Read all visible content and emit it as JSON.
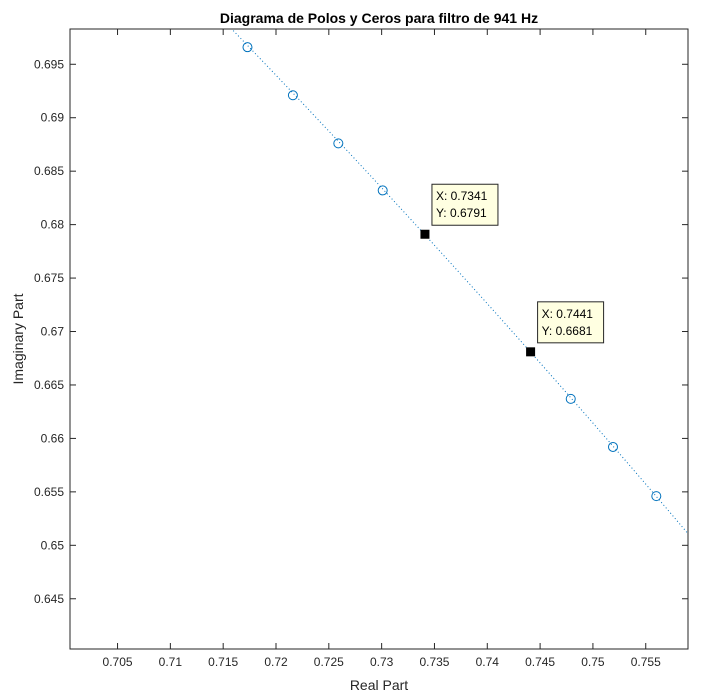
{
  "chart_data": {
    "type": "scatter",
    "title": "Diagrama de Polos y Ceros para filtro de 941 Hz",
    "xlabel": "Real Part",
    "ylabel": "Imaginary Part",
    "xlim": [
      0.7005,
      0.759
    ],
    "ylim": [
      0.6403,
      0.6983
    ],
    "xticks": [
      0.705,
      0.71,
      0.715,
      0.72,
      0.725,
      0.73,
      0.735,
      0.74,
      0.745,
      0.75,
      0.755
    ],
    "xtick_labels": [
      "0.705",
      "0.71",
      "0.715",
      "0.72",
      "0.725",
      "0.73",
      "0.735",
      "0.74",
      "0.745",
      "0.75",
      "0.755"
    ],
    "yticks": [
      0.645,
      0.65,
      0.655,
      0.66,
      0.665,
      0.67,
      0.675,
      0.68,
      0.685,
      0.69,
      0.695
    ],
    "ytick_labels": [
      "0.645",
      "0.65",
      "0.655",
      "0.66",
      "0.665",
      "0.67",
      "0.675",
      "0.68",
      "0.685",
      "0.69",
      "0.695"
    ],
    "grid": false,
    "colors": {
      "zeros": "#0072bd",
      "unit_circle": "#0072bd",
      "poles": "#000000"
    },
    "unit_circle": {
      "style": "dotted"
    },
    "zeros": [
      {
        "x": 0.7173,
        "y": 0.6966
      },
      {
        "x": 0.7216,
        "y": 0.6921
      },
      {
        "x": 0.7259,
        "y": 0.6876
      },
      {
        "x": 0.7301,
        "y": 0.6832
      },
      {
        "x": 0.7479,
        "y": 0.6637
      },
      {
        "x": 0.7519,
        "y": 0.6592
      },
      {
        "x": 0.756,
        "y": 0.6546
      }
    ],
    "poles": [
      {
        "x": 0.7341,
        "y": 0.6791
      },
      {
        "x": 0.7441,
        "y": 0.6681
      }
    ],
    "datatips": [
      {
        "x": 0.7341,
        "y": 0.6791,
        "line1": "X: 0.7341",
        "line2": "Y: 0.6791"
      },
      {
        "x": 0.7441,
        "y": 0.6681,
        "line1": "X: 0.7441",
        "line2": "Y: 0.6681"
      }
    ]
  }
}
